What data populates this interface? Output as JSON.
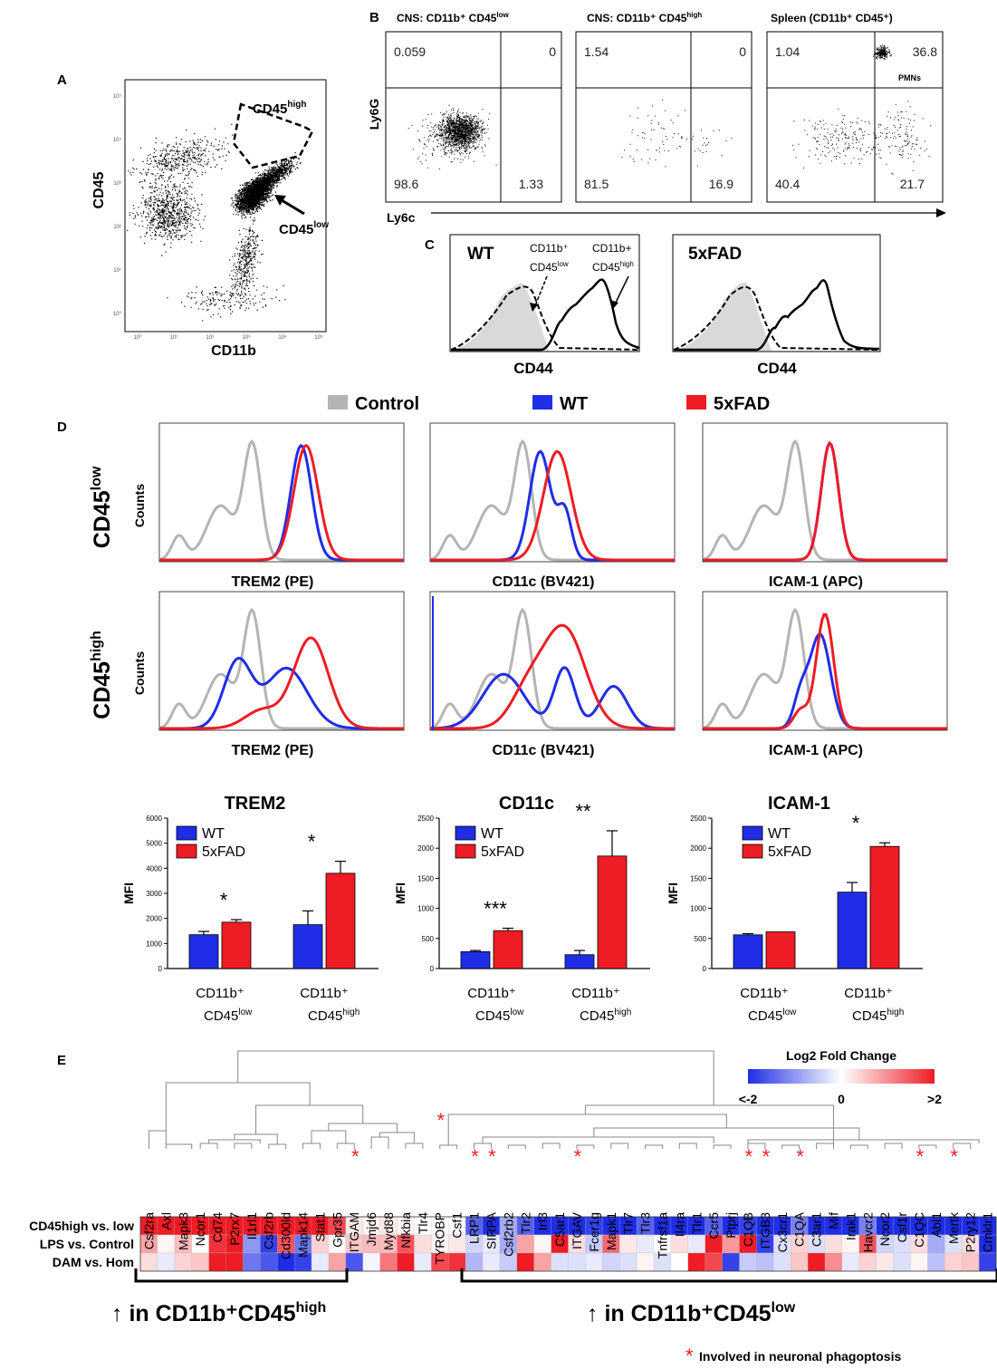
{
  "colors": {
    "control": "#b4b4b4",
    "wt": "#1f2de6",
    "fad": "#ee1c24",
    "ink": "#000000"
  },
  "panel_labels": {
    "a": "A",
    "b": "B",
    "c": "C",
    "d": "D",
    "e": "E"
  },
  "panel_a": {
    "y_axis": "CD45",
    "x_axis": "CD11b",
    "gate_high": "CD45",
    "gate_high_sup": "high",
    "gate_low": "CD45",
    "gate_low_sup": "low",
    "y_ticks": [
      "10⁵",
      "10⁴",
      "10³",
      "10²",
      "10¹",
      "10⁰"
    ],
    "x_ticks": [
      "10⁰",
      "10¹",
      "10²",
      "10³",
      "10⁴",
      "10⁵"
    ]
  },
  "panel_b": {
    "y_axis": "Ly6G",
    "x_axis": "Ly6c",
    "plots": [
      {
        "title": "CNS: CD11b⁺ CD45",
        "title_sup": "low",
        "q": [
          "0.059",
          "0",
          "98.6",
          "1.33"
        ]
      },
      {
        "title": "CNS: CD11b⁺ CD45",
        "title_sup": "high",
        "q": [
          "1.54",
          "0",
          "81.5",
          "16.9"
        ]
      },
      {
        "title": "Spleen (CD11b⁺ CD45⁺)",
        "title_sup": "",
        "q": [
          "1.04",
          "36.8",
          "40.4",
          "21.7"
        ],
        "annotation": "PMNs"
      }
    ]
  },
  "panel_c": {
    "plots": [
      {
        "label": "WT",
        "x_axis": "CD44",
        "ann1_line1": "CD11b⁺",
        "ann1_line2": "CD45",
        "ann1_sup": "low",
        "ann2_line1": "CD11b+",
        "ann2_line2": "CD45",
        "ann2_sup": "high"
      },
      {
        "label": "5xFAD",
        "x_axis": "CD44"
      }
    ]
  },
  "panel_d": {
    "legend": [
      {
        "label": "Control"
      },
      {
        "label": "WT"
      },
      {
        "label": "5xFAD"
      }
    ],
    "row_labels": [
      {
        "main": "CD45",
        "sup": "low"
      },
      {
        "main": "CD45",
        "sup": "high"
      }
    ],
    "y_axis": "Counts",
    "histogram_axes": [
      "TREM2 (PE)",
      "CD11c (BV421)",
      "ICAM-1 (APC)"
    ]
  },
  "chart_data": [
    {
      "type": "bar",
      "title": "TREM2",
      "ylabel": "MFI",
      "ylim": [
        0,
        6000
      ],
      "yticks": [
        "0",
        "1000",
        "2000",
        "3000",
        "4000",
        "5000",
        "6000"
      ],
      "categories": [
        {
          "line1": "CD11b⁺",
          "line2": "CD45",
          "sup": "low"
        },
        {
          "line1": "CD11b⁺",
          "line2": "CD45",
          "sup": "high"
        }
      ],
      "series": [
        {
          "name": "WT",
          "values": [
            1350,
            1750
          ],
          "errors": [
            130,
            550
          ]
        },
        {
          "name": "5xFAD",
          "values": [
            1850,
            3800
          ],
          "errors": [
            100,
            480
          ]
        }
      ],
      "significance": [
        "*",
        "*"
      ]
    },
    {
      "type": "bar",
      "title": "CD11c",
      "ylabel": "MFI",
      "ylim": [
        0,
        2500
      ],
      "yticks": [
        "0",
        "500",
        "1000",
        "1500",
        "2000",
        "2500"
      ],
      "categories": [
        {
          "line1": "CD11b⁺",
          "line2": "CD45",
          "sup": "low"
        },
        {
          "line1": "CD11b⁺",
          "line2": "CD45",
          "sup": "high"
        }
      ],
      "series": [
        {
          "name": "WT",
          "values": [
            280,
            230
          ],
          "errors": [
            20,
            70
          ]
        },
        {
          "name": "5xFAD",
          "values": [
            630,
            1870
          ],
          "errors": [
            40,
            420
          ]
        }
      ],
      "significance": [
        "***",
        "**"
      ]
    },
    {
      "type": "bar",
      "title": "ICAM-1",
      "ylabel": "MFI",
      "ylim": [
        0,
        2500
      ],
      "yticks": [
        "0",
        "500",
        "1000",
        "1500",
        "2000",
        "2500"
      ],
      "categories": [
        {
          "line1": "CD11b⁺",
          "line2": "CD45",
          "sup": "low"
        },
        {
          "line1": "CD11b⁺",
          "line2": "CD45",
          "sup": "high"
        }
      ],
      "series": [
        {
          "name": "WT",
          "values": [
            560,
            1270
          ],
          "errors": [
            20,
            160
          ]
        },
        {
          "name": "5xFAD",
          "values": [
            610,
            2030
          ],
          "errors": [
            0,
            60
          ]
        }
      ],
      "significance": [
        "",
        "*"
      ]
    },
    {
      "type": "heatmap",
      "title": "Log2 Fold Change",
      "color_range": [
        -2,
        2
      ],
      "color_labels": [
        "<-2",
        "0",
        ">2"
      ],
      "rows": [
        "CD45high vs. low",
        "LPS vs. Control",
        "DAM vs. Hom"
      ],
      "columns": [
        "Csf2ra",
        "Axl",
        "Mapk3",
        "Ncor1",
        "Cd74",
        "P2rx7",
        "Il1rl1",
        "Csf2rb",
        "Cd300ld",
        "Mapk14",
        "Stat1",
        "Gpr35",
        "ITGAM",
        "Jmjd6",
        "Myd88",
        "Nfkbia",
        "Tlr4",
        "TYROBP",
        "Csf1",
        "LRP1",
        "SIRPA",
        "Csf2rb2",
        "Tlr2",
        "Irf3",
        "C5ar1",
        "ITGAV",
        "Fcer1g",
        "Mapk1",
        "Tlr7",
        "Tlr3",
        "Tnfrsf1a",
        "Il4ra",
        "Tlr1",
        "Ccr5",
        "Ptprj",
        "C1QB",
        "ITGB3",
        "Cx3cr1",
        "C1QA",
        "C3ar1",
        "Mif",
        "Irak1",
        "Havcr2",
        "Ncor2",
        "Csf1r",
        "C1QC",
        "Abl1",
        "Mertk",
        "P2ry12",
        "Cmklr1"
      ],
      "phagoptosis": [
        "ITGAM",
        "TYROBP",
        "LRP1",
        "SIRPA",
        "ITGAV",
        "C1QB",
        "ITGB3",
        "C1QA",
        "C1QC",
        "Mertk"
      ],
      "values": [
        [
          2,
          2,
          2,
          2,
          2,
          2,
          2,
          2,
          2,
          2,
          2,
          1.6,
          0.2,
          0.1,
          0.2,
          0.1,
          0,
          0,
          0,
          -1.5,
          -2,
          -0.8,
          -1.5,
          -2,
          -2,
          -2,
          -1.8,
          -2,
          -2,
          -1.5,
          -2,
          -2,
          -2,
          -1.5,
          -2,
          -1.8,
          -2,
          -2,
          -1.2,
          -2,
          -2,
          -2,
          -1.2,
          -2,
          -2,
          -2,
          -2,
          -2,
          -2,
          -2
        ],
        [
          0.8,
          0.1,
          0.6,
          0,
          1.8,
          2,
          -1,
          -1.8,
          1.5,
          -1.3,
          0.4,
          0,
          0.5,
          0.6,
          0.6,
          1.5,
          0.3,
          0.1,
          0.2,
          -0.4,
          -0.2,
          -0.8,
          0.8,
          0.1,
          2,
          0.3,
          -0.5,
          1.3,
          0.2,
          -0.2,
          0,
          0.3,
          -0.2,
          2,
          0.9,
          2,
          -1.8,
          -0.3,
          0.4,
          -0.3,
          0.3,
          0.1,
          1.5,
          -0.4,
          -0.3,
          0.3,
          -0.8,
          -0.3,
          0.3,
          -2
        ],
        [
          0.3,
          -0.2,
          0.4,
          0.5,
          2,
          2,
          -1.3,
          -1.6,
          -2,
          -1.8,
          -0.2,
          0.8,
          -1.6,
          -0.1,
          1.2,
          2,
          -0.2,
          1.6,
          1.8,
          -0.7,
          -0.2,
          -0.5,
          2,
          0.8,
          -0.3,
          -0.3,
          -0.2,
          -0.4,
          -0.3,
          0.1,
          -0.3,
          0,
          2,
          1.6,
          -1.8,
          -0.5,
          -0.6,
          -0.3,
          0.5,
          2,
          1,
          -0.2,
          0.4,
          0.2,
          -0.3,
          0.1,
          -0.6,
          0.4,
          0.5,
          -1.8
        ]
      ]
    }
  ],
  "panel_e": {
    "bracket_left_text": "↑ in CD11b⁺CD45",
    "bracket_left_sup": "high",
    "bracket_right_text": "↑ in CD11b⁺CD45",
    "bracket_right_sup": "low",
    "footnote_star": "*",
    "footnote_text": "Involved in neuronal phagoptosis"
  }
}
